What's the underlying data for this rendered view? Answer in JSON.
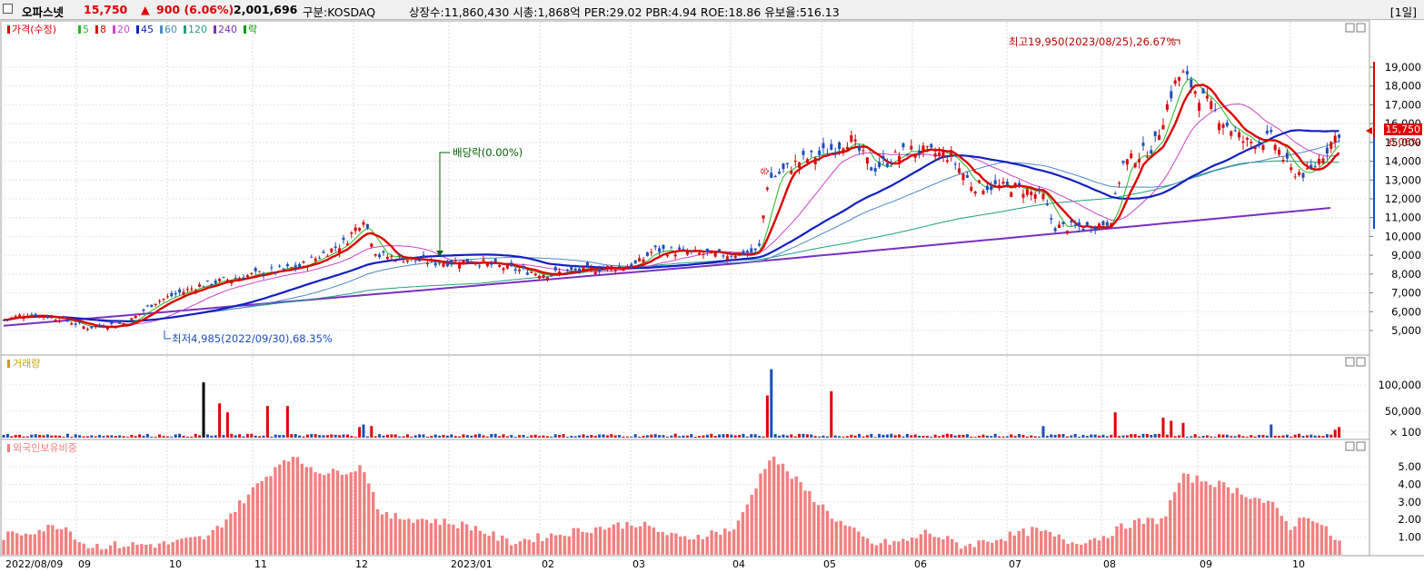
{
  "header": {
    "stock_name": "오파스넷",
    "price": "15,750",
    "change_arrow": "▲",
    "change": "900 (6.06%)",
    "volume": "2,001,696",
    "market": "구분:KOSDAQ",
    "stats": "상장수:11,860,430 시총:1,868억 PER:29.02 PBR:4.94 ROE:18.86 유보율:516.13",
    "period": "[1일]"
  },
  "colors": {
    "up": "#e00000",
    "down": "#1a4fc0",
    "ma5": "#22b822",
    "ma8": "#dd0000",
    "ma20": "#cc44cc",
    "ma45": "#1020c0",
    "ma60": "#4a8ac8",
    "ma120": "#20a080",
    "ma240": "#7a30c0",
    "foreign": "#f08080"
  },
  "price_panel": {
    "legend": [
      {
        "label": "가격(수정)",
        "color": "#e00000"
      },
      {
        "label": "5",
        "color": "#22b822"
      },
      {
        "label": "8",
        "color": "#dd0000"
      },
      {
        "label": "20",
        "color": "#cc44cc"
      },
      {
        "label": "45",
        "color": "#1020c0"
      },
      {
        "label": "60",
        "color": "#4a8ac8"
      },
      {
        "label": "120",
        "color": "#20a080"
      },
      {
        "label": "240",
        "color": "#7a30c0"
      },
      {
        "label": "락",
        "color": "#009900"
      }
    ],
    "y_ticks": [
      "19,000",
      "18,000",
      "17,000",
      "16,000",
      "15,000",
      "14,000",
      "13,000",
      "12,000",
      "11,000",
      "10,000",
      "9,000",
      "8,000",
      "7,000",
      "6,000",
      "5,000"
    ],
    "high_annotation": "최고19,950(2023/08/25),26.67%",
    "low_annotation": "최저4,985(2022/09/30),68.35%",
    "dividend_annotation": "배당락(0.00%)",
    "last_price_label": "15,750",
    "last_pct_label": "6.06%"
  },
  "volume_panel": {
    "title": "거래량",
    "y_ticks": [
      "100,000",
      "50,000",
      "× 100"
    ]
  },
  "foreign_panel": {
    "title": "외국인보유비중",
    "y_ticks": [
      "5.00",
      "4.00",
      "3.00",
      "2.00",
      "1.00"
    ]
  },
  "x_axis": {
    "labels": [
      "2022/08/09",
      "09",
      "10",
      "11",
      "12",
      "2023/01",
      "02",
      "03",
      "04",
      "05",
      "06",
      "07",
      "08",
      "09",
      "10"
    ]
  },
  "chart_data": {
    "type": "candlestick",
    "period": "daily",
    "date_range": [
      "2022/08/09",
      "2023/10"
    ],
    "price_ylim": [
      4500,
      19500
    ],
    "price_points": [
      {
        "month": "2022/08",
        "close": 5500
      },
      {
        "month": "2022/09",
        "close": 5900
      },
      {
        "month": "2022/10",
        "close": 5200
      },
      {
        "month": "2022/11",
        "close": 7000
      },
      {
        "month": "2022/12",
        "close": 9500
      },
      {
        "month": "2023/01",
        "close": 8500
      },
      {
        "month": "2023/02",
        "close": 8100
      },
      {
        "month": "2023/03",
        "close": 9000
      },
      {
        "month": "2023/04",
        "close": 13000
      },
      {
        "month": "2023/05",
        "close": 15000
      },
      {
        "month": "2023/06",
        "close": 14000
      },
      {
        "month": "2023/07",
        "close": 10600
      },
      {
        "month": "2023/08",
        "close": 17500
      },
      {
        "month": "2023/09",
        "close": 15200
      },
      {
        "month": "2023/10",
        "close": 15750
      }
    ],
    "high": {
      "value": 19950,
      "date": "2023/08/25"
    },
    "low": {
      "value": 4985,
      "date": "2022/09/30"
    },
    "last_price": 15750,
    "volume_ylim": [
      0,
      130000
    ],
    "foreign_ratio_ylim": [
      0,
      6
    ],
    "foreign_ratio_monthly_peak": [
      {
        "month": "2022/08",
        "value": 1.7
      },
      {
        "month": "2022/09",
        "value": 0.6
      },
      {
        "month": "2022/10",
        "value": 0.6
      },
      {
        "month": "2022/11",
        "value": 5.6
      },
      {
        "month": "2022/12",
        "value": 5.0
      },
      {
        "month": "2023/01",
        "value": 2.0
      },
      {
        "month": "2023/02",
        "value": 1.2
      },
      {
        "month": "2023/03",
        "value": 1.8
      },
      {
        "month": "2023/04",
        "value": 5.7
      },
      {
        "month": "2023/05",
        "value": 3.5
      },
      {
        "month": "2023/06",
        "value": 1.1
      },
      {
        "month": "2023/07",
        "value": 1.5
      },
      {
        "month": "2023/08",
        "value": 4.4
      },
      {
        "month": "2023/09",
        "value": 3.8
      },
      {
        "month": "2023/10",
        "value": 2.3
      }
    ]
  }
}
